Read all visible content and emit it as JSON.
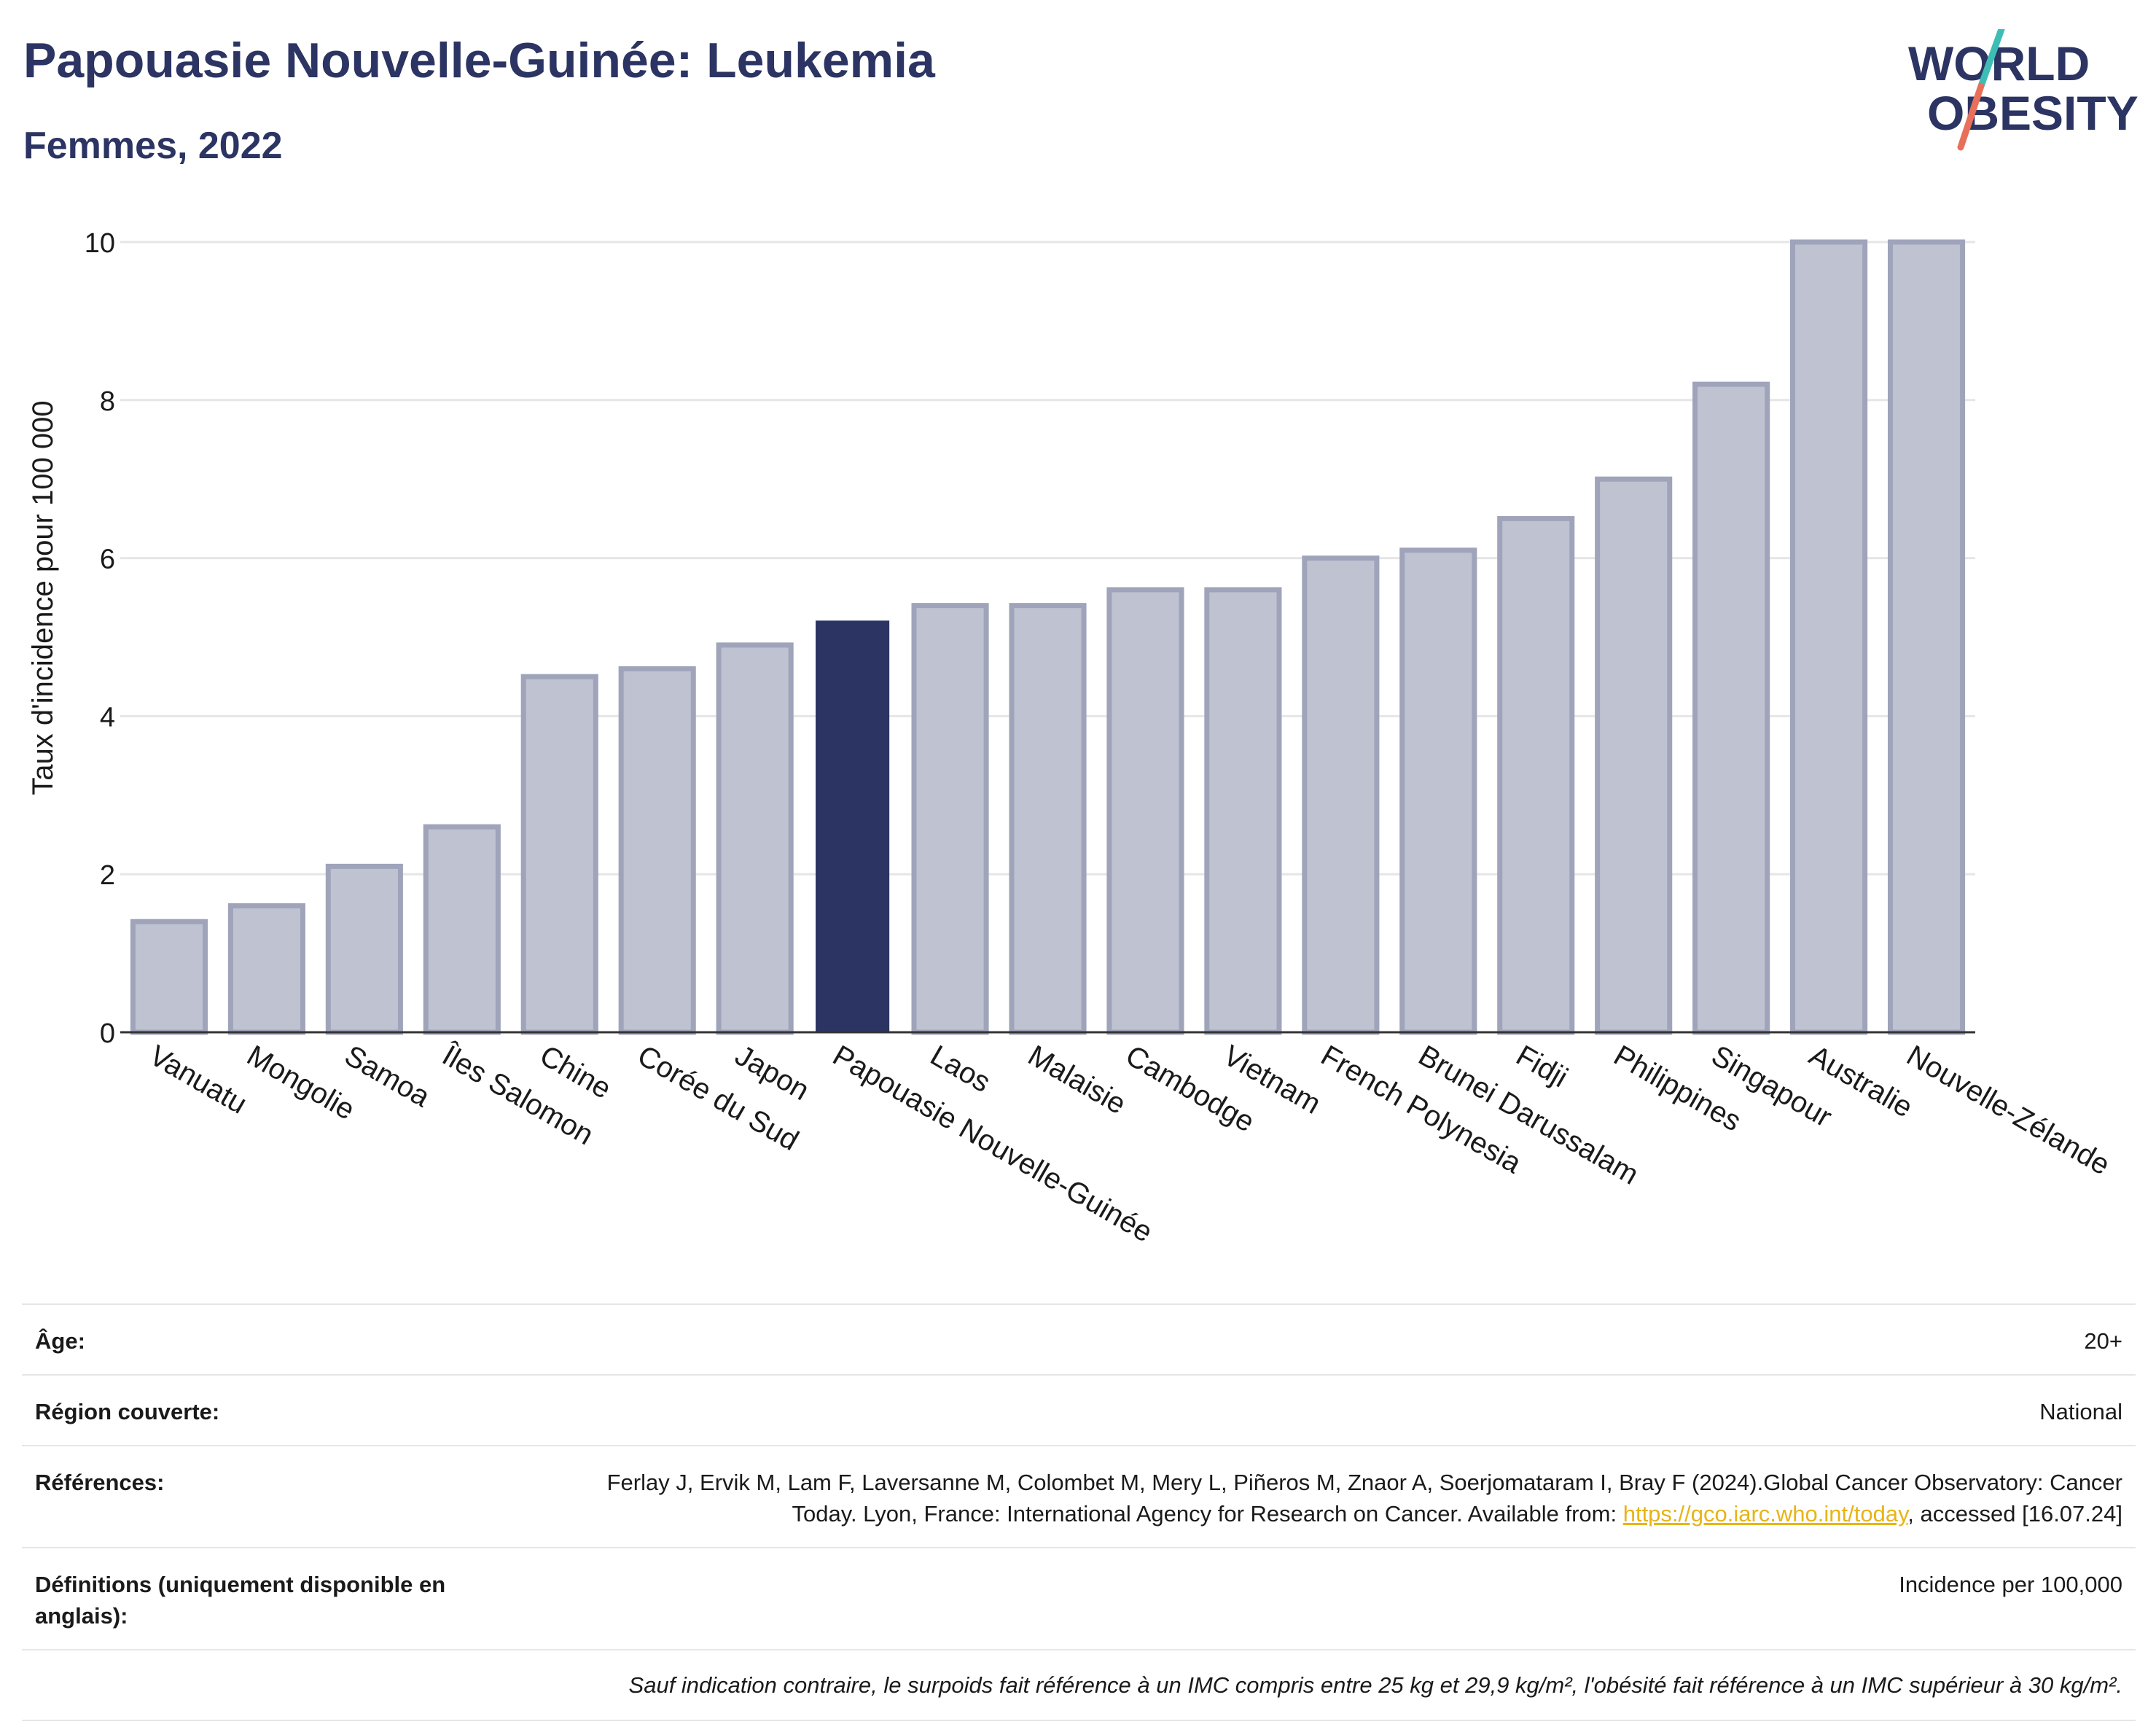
{
  "header": {
    "title": "Papouasie Nouvelle-Guinée: Leukemia",
    "subtitle": "Femmes, 2022"
  },
  "logo": {
    "line1": "WORLD",
    "line2": "OBESITY",
    "colors": {
      "text": "#2b3462",
      "slash_top": "#3dbdb5",
      "slash_bottom": "#e8705a"
    }
  },
  "colors": {
    "highlight_bar": "#2b3462",
    "other_bar_fill": "#bfc2d0",
    "other_bar_stroke": "#9fa4bb",
    "grid": "#e6e6e6",
    "axis": "#333333"
  },
  "chart_data": {
    "type": "bar",
    "title": "Papouasie Nouvelle-Guinée: Leukemia",
    "subtitle": "Femmes, 2022",
    "xlabel": "",
    "ylabel": "Taux d'incidence pour 100 000",
    "ylim": [
      0,
      10
    ],
    "yticks": [
      0,
      2,
      4,
      6,
      8,
      10
    ],
    "grid": true,
    "legend": "none",
    "highlight": "Papouasie Nouvelle-Guinée",
    "categories": [
      "Vanuatu",
      "Mongolie",
      "Samoa",
      "Îles Salomon",
      "Chine",
      "Corée du Sud",
      "Japon",
      "Papouasie Nouvelle-Guinée",
      "Laos",
      "Malaisie",
      "Cambodge",
      "Vietnam",
      "French Polynesia",
      "Brunei Darussalam",
      "Fidji",
      "Philippines",
      "Singapour",
      "Australie",
      "Nouvelle-Zélande"
    ],
    "values": [
      1.4,
      1.6,
      2.1,
      2.6,
      4.5,
      4.6,
      4.9,
      5.2,
      5.4,
      5.4,
      5.6,
      5.6,
      6.0,
      6.1,
      6.5,
      7.0,
      8.2,
      10.0,
      10.0
    ]
  },
  "info": {
    "age_label": "Âge:",
    "age_value": "20+",
    "region_label": "Région couverte:",
    "region_value": "National",
    "references_label": "Références:",
    "references_text_1": "Ferlay J, Ervik M, Lam F, Laversanne M, Colombet M, Mery L, Piñeros M, Znaor A, Soerjomataram I, Bray F (2024).Global Cancer Observatory: Cancer Today. Lyon, France: International Agency for Research on Cancer. Available from: ",
    "references_link": "https://gco.iarc.who.int/today",
    "references_text_2": ", accessed [16.07.24]",
    "definitions_label": "Définitions (uniquement disponible en anglais):",
    "definitions_value": "Incidence per 100,000",
    "note": "Sauf indication contraire, le surpoids fait référence à un IMC compris entre 25 kg et 29,9 kg/m², l'obésité fait référence à un IMC supérieur à 30 kg/m²."
  }
}
